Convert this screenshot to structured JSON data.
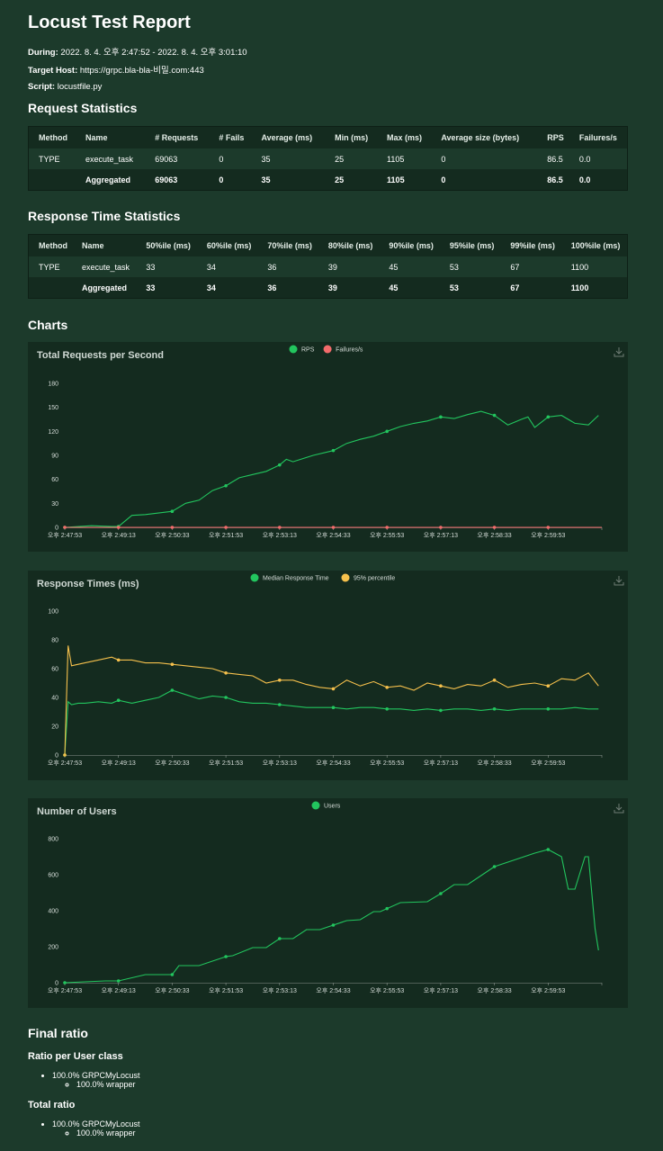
{
  "report": {
    "title": "Locust Test Report",
    "during_label": "During:",
    "during_value": "2022. 8. 4. 오후 2:47:52 - 2022. 8. 4. 오후 3:01:10",
    "host_label": "Target Host:",
    "host_value": "https://grpc.bla-bla-비밀.com:443",
    "script_label": "Script:",
    "script_value": "locustfile.py"
  },
  "request_stats": {
    "heading": "Request Statistics",
    "columns": [
      "Method",
      "Name",
      "# Requests",
      "# Fails",
      "Average (ms)",
      "Min (ms)",
      "Max (ms)",
      "Average size (bytes)",
      "RPS",
      "Failures/s"
    ],
    "rows": [
      [
        "TYPE",
        "execute_task",
        "69063",
        "0",
        "35",
        "25",
        "1105",
        "0",
        "86.5",
        "0.0"
      ],
      [
        "",
        "Aggregated",
        "69063",
        "0",
        "35",
        "25",
        "1105",
        "0",
        "86.5",
        "0.0"
      ]
    ]
  },
  "response_stats": {
    "heading": "Response Time Statistics",
    "columns": [
      "Method",
      "Name",
      "50%ile (ms)",
      "60%ile (ms)",
      "70%ile (ms)",
      "80%ile (ms)",
      "90%ile (ms)",
      "95%ile (ms)",
      "99%ile (ms)",
      "100%ile (ms)"
    ],
    "rows": [
      [
        "TYPE",
        "execute_task",
        "33",
        "34",
        "36",
        "39",
        "45",
        "53",
        "67",
        "1100"
      ],
      [
        "",
        "Aggregated",
        "33",
        "34",
        "36",
        "39",
        "45",
        "53",
        "67",
        "1100"
      ]
    ]
  },
  "charts_heading": "Charts",
  "colors": {
    "green": "#22c55e",
    "yellow": "#f5c04c",
    "red": "#f36b6b",
    "grid": "#5b6b62"
  },
  "chart_data": [
    {
      "type": "line",
      "title": "Total Requests per Second",
      "xlabel": "",
      "ylabel": "",
      "x_ticks": [
        "오후 2:47:53",
        "오후 2:49:13",
        "오후 2:50:33",
        "오후 2:51:53",
        "오후 2:53:13",
        "오후 2:54:33",
        "오후 2:55:53",
        "오후 2:57:13",
        "오후 2:58:33",
        "오후 2:59:53"
      ],
      "y_ticks": [
        "0",
        "30",
        "60",
        "90",
        "120",
        "150",
        "180"
      ],
      "ylim": [
        0,
        180
      ],
      "x_range": [
        0,
        800
      ],
      "grid": false,
      "legend": "top-center",
      "series": [
        {
          "name": "RPS",
          "color": "#22c55e",
          "x": [
            0,
            40,
            70,
            80,
            100,
            120,
            160,
            180,
            200,
            220,
            240,
            260,
            280,
            300,
            320,
            330,
            340,
            370,
            400,
            420,
            440,
            460,
            480,
            500,
            520,
            540,
            560,
            580,
            600,
            620,
            640,
            660,
            680,
            690,
            700,
            720,
            740,
            760,
            780,
            795
          ],
          "y": [
            0,
            2,
            1,
            1,
            15,
            16,
            20,
            30,
            34,
            46,
            52,
            62,
            66,
            70,
            78,
            85,
            82,
            90,
            96,
            105,
            110,
            114,
            120,
            126,
            130,
            133,
            138,
            136,
            141,
            145,
            140,
            128,
            135,
            138,
            125,
            138,
            140,
            130,
            128,
            140
          ]
        },
        {
          "name": "Failures/s",
          "color": "#f36b6b",
          "x": [
            0,
            800
          ],
          "y": [
            0,
            0
          ]
        }
      ]
    },
    {
      "type": "line",
      "title": "Response Times (ms)",
      "xlabel": "",
      "ylabel": "",
      "x_ticks": [
        "오후 2:47:53",
        "오후 2:49:13",
        "오후 2:50:33",
        "오후 2:51:53",
        "오후 2:53:13",
        "오후 2:54:33",
        "오후 2:55:53",
        "오후 2:57:13",
        "오후 2:58:33",
        "오후 2:59:53"
      ],
      "y_ticks": [
        "0",
        "20",
        "40",
        "60",
        "80",
        "100"
      ],
      "ylim": [
        0,
        100
      ],
      "x_range": [
        0,
        800
      ],
      "grid": false,
      "legend": "top-center",
      "series": [
        {
          "name": "Median Response Time",
          "color": "#22c55e",
          "x": [
            0,
            5,
            10,
            20,
            30,
            50,
            70,
            80,
            100,
            120,
            140,
            160,
            180,
            200,
            220,
            240,
            260,
            280,
            300,
            320,
            340,
            360,
            380,
            400,
            420,
            440,
            460,
            480,
            500,
            520,
            540,
            560,
            580,
            600,
            620,
            640,
            660,
            680,
            700,
            720,
            740,
            760,
            780,
            795
          ],
          "y": [
            0,
            37,
            35,
            36,
            36,
            37,
            36,
            38,
            36,
            38,
            40,
            45,
            42,
            39,
            41,
            40,
            37,
            36,
            36,
            35,
            34,
            33,
            33,
            33,
            32,
            33,
            33,
            32,
            32,
            31,
            32,
            31,
            32,
            32,
            31,
            32,
            31,
            32,
            32,
            32,
            32,
            33,
            32,
            32
          ]
        },
        {
          "name": "95% percentile",
          "color": "#f5c04c",
          "x": [
            0,
            5,
            10,
            20,
            30,
            50,
            70,
            80,
            100,
            120,
            140,
            160,
            180,
            200,
            220,
            240,
            260,
            280,
            300,
            320,
            340,
            360,
            380,
            400,
            420,
            440,
            460,
            480,
            500,
            520,
            540,
            560,
            580,
            600,
            620,
            640,
            660,
            680,
            700,
            720,
            740,
            760,
            780,
            795
          ],
          "y": [
            0,
            76,
            62,
            63,
            64,
            66,
            68,
            66,
            66,
            64,
            64,
            63,
            62,
            61,
            60,
            57,
            56,
            55,
            50,
            52,
            52,
            49,
            47,
            46,
            52,
            48,
            51,
            47,
            48,
            45,
            50,
            48,
            46,
            49,
            48,
            52,
            47,
            49,
            50,
            48,
            53,
            52,
            57,
            48
          ]
        }
      ]
    },
    {
      "type": "line",
      "title": "Number of Users",
      "xlabel": "",
      "ylabel": "",
      "x_ticks": [
        "오후 2:47:53",
        "오후 2:49:13",
        "오후 2:50:33",
        "오후 2:51:53",
        "오후 2:53:13",
        "오후 2:54:33",
        "오후 2:55:53",
        "오후 2:57:13",
        "오후 2:58:33",
        "오후 2:59:53"
      ],
      "y_ticks": [
        "0",
        "200",
        "400",
        "600",
        "800"
      ],
      "ylim": [
        0,
        800
      ],
      "x_range": [
        0,
        800
      ],
      "grid": false,
      "legend": "top-center",
      "series": [
        {
          "name": "Users",
          "color": "#22c55e",
          "x": [
            0,
            60,
            80,
            120,
            160,
            170,
            200,
            240,
            250,
            280,
            300,
            320,
            340,
            360,
            380,
            420,
            440,
            460,
            470,
            500,
            540,
            560,
            580,
            600,
            620,
            640,
            680,
            700,
            720,
            740,
            750,
            760,
            775,
            780,
            790,
            795
          ],
          "y": [
            0,
            10,
            10,
            45,
            45,
            95,
            95,
            145,
            150,
            195,
            195,
            245,
            245,
            295,
            295,
            345,
            350,
            395,
            395,
            445,
            450,
            495,
            545,
            545,
            595,
            645,
            695,
            720,
            740,
            700,
            520,
            520,
            700,
            700,
            300,
            180
          ]
        }
      ]
    }
  ],
  "final_ratio": {
    "heading": "Final ratio",
    "per_class_heading": "Ratio per User class",
    "per_class_item": "100.0% GRPCMyLocust",
    "per_class_sub": "100.0% wrapper",
    "total_heading": "Total ratio",
    "total_item": "100.0% GRPCMyLocust",
    "total_sub": "100.0% wrapper"
  }
}
